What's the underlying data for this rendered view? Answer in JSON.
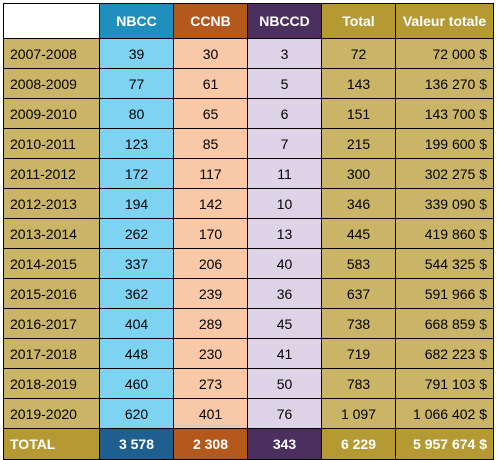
{
  "headers": {
    "year": "",
    "nbcc": "NBCC",
    "ccnb": "CCNB",
    "nbccd": "NBCCD",
    "total": "Total",
    "value": "Valeur totale"
  },
  "rows": [
    {
      "year": "2007-2008",
      "nbcc": "39",
      "ccnb": "30",
      "nbccd": "3",
      "total": "72",
      "value": "72 000 $"
    },
    {
      "year": "2008-2009",
      "nbcc": "77",
      "ccnb": "61",
      "nbccd": "5",
      "total": "143",
      "value": "136 270 $"
    },
    {
      "year": "2009-2010",
      "nbcc": "80",
      "ccnb": "65",
      "nbccd": "6",
      "total": "151",
      "value": "143 700 $"
    },
    {
      "year": "2010-2011",
      "nbcc": "123",
      "ccnb": "85",
      "nbccd": "7",
      "total": "215",
      "value": "199 600 $"
    },
    {
      "year": "2011-2012",
      "nbcc": "172",
      "ccnb": "117",
      "nbccd": "11",
      "total": "300",
      "value": "302 275 $"
    },
    {
      "year": "2012-2013",
      "nbcc": "194",
      "ccnb": "142",
      "nbccd": "10",
      "total": "346",
      "value": "339 090 $"
    },
    {
      "year": "2013-2014",
      "nbcc": "262",
      "ccnb": "170",
      "nbccd": "13",
      "total": "445",
      "value": "419 860 $"
    },
    {
      "year": "2014-2015",
      "nbcc": "337",
      "ccnb": "206",
      "nbccd": "40",
      "total": "583",
      "value": "544 325 $"
    },
    {
      "year": "2015-2016",
      "nbcc": "362",
      "ccnb": "239",
      "nbccd": "36",
      "total": "637",
      "value": "591 966 $"
    },
    {
      "year": "2016-2017",
      "nbcc": "404",
      "ccnb": "289",
      "nbccd": "45",
      "total": "738",
      "value": "668 859 $"
    },
    {
      "year": "2017-2018",
      "nbcc": "448",
      "ccnb": "230",
      "nbccd": "41",
      "total": "719",
      "value": "682 223 $"
    },
    {
      "year": "2018-2019",
      "nbcc": "460",
      "ccnb": "273",
      "nbccd": "50",
      "total": "783",
      "value": "791 103 $"
    },
    {
      "year": "2019-2020",
      "nbcc": "620",
      "ccnb": "401",
      "nbccd": "76",
      "total": "1 097",
      "value": "1 066 402 $"
    }
  ],
  "footer": {
    "label": "TOTAL",
    "nbcc": "3 578",
    "ccnb": "2 308",
    "nbccd": "343",
    "total": "6 229",
    "value": "5 957 674 $"
  },
  "colors": {
    "nbcc_header": "#1f8fbf",
    "ccnb_header": "#b4591b",
    "nbccd_header": "#4b2f5f",
    "total_header": "#b59a33",
    "nbcc_cell": "#7ed3f2",
    "ccnb_cell": "#f8c8a7",
    "nbccd_cell": "#ddd3e6",
    "gold_cell": "#c9b467"
  }
}
